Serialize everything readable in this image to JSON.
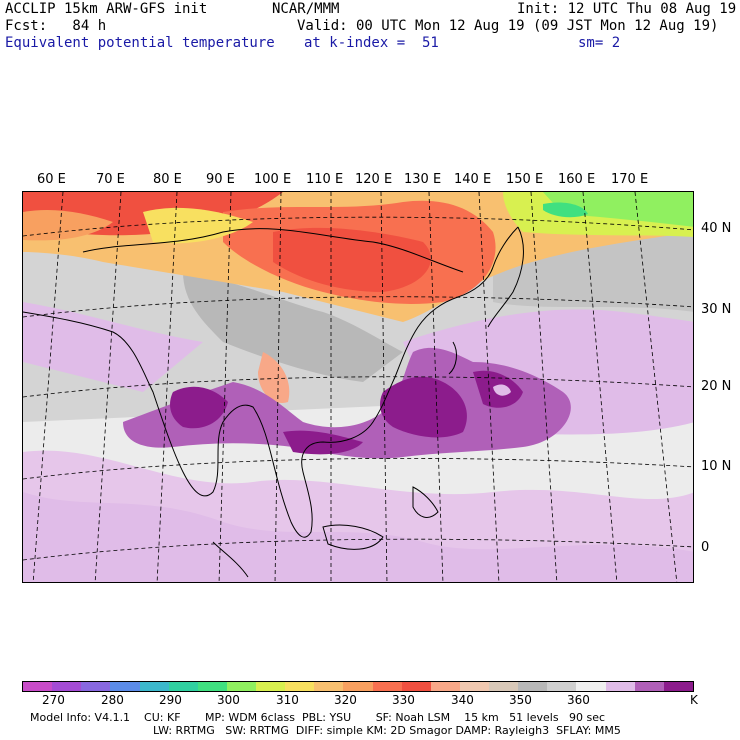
{
  "header": {
    "line1_left": "ACCLIP 15km ARW-GFS init",
    "line1_mid": "NCAR/MMM",
    "line1_right": "Init: 12 UTC Thu 08 Aug 19",
    "line2_left": "Fcst:   84 h",
    "line2_right": "Valid: 00 UTC Mon 12 Aug 19 (09 JST Mon 12 Aug 19)",
    "line3_left": "Equivalent potential temperature",
    "line3_mid": "at k-index =  51",
    "line3_right": "sm= 2"
  },
  "lon_labels": [
    "60 E",
    "70 E",
    "80 E",
    "90 E",
    "100 E",
    "110 E",
    "120 E",
    "130 E",
    "140 E",
    "150 E",
    "160 E",
    "170 E"
  ],
  "lat_labels": [
    "40 N",
    "30 N",
    "20 N",
    "10 N",
    "0"
  ],
  "colorbar": {
    "colors": [
      "#c84cc8",
      "#a44cd4",
      "#8868e0",
      "#5c8ce8",
      "#3cb8cc",
      "#30d0a0",
      "#40e080",
      "#90f060",
      "#d8f050",
      "#f8e060",
      "#f8c070",
      "#f8a060",
      "#f87050",
      "#f05040",
      "#f8a888",
      "#f0c8b0",
      "#d8c8b8",
      "#b8b8b8",
      "#d0d0d0",
      "#f0f0f0",
      "#e0bce8",
      "#b060b8",
      "#8c1c8c"
    ],
    "tick_labels": [
      "270",
      "280",
      "290",
      "300",
      "310",
      "320",
      "330",
      "340",
      "350",
      "360",
      "K"
    ],
    "units": "K"
  },
  "footer": {
    "line1": "Model Info: V4.1.1    CU: KF       MP: WDM 6class  PBL: YSU       SF: Noah LSM    15 km   51 levels   90 sec",
    "line2": "LW: RRTMG   SW: RRTMG  DIFF: simple KM: 2D Smagor DAMP: Rayleigh3  SFLAY: MM5"
  }
}
